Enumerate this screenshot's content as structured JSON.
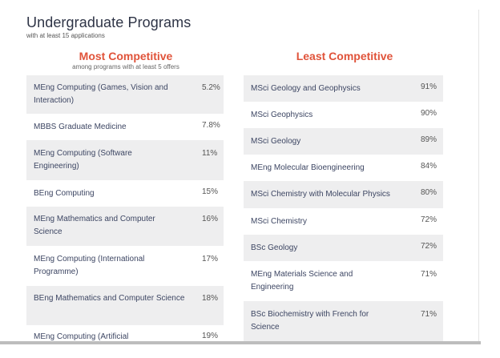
{
  "title": "Undergraduate Programs",
  "subtitle": "with at least 15 applications",
  "most": {
    "heading": "Most Competitive",
    "note": "among programs with at least 5 offers",
    "rows": [
      {
        "name": "MEng Computing (Games, Vision and Interaction)",
        "pct": "5.2%"
      },
      {
        "name": "MBBS Graduate Medicine",
        "pct": "7.8%"
      },
      {
        "name": "MEng Computing (Software Engineering)",
        "pct": "11%"
      },
      {
        "name": "BEng Computing",
        "pct": "15%"
      },
      {
        "name": "MEng Mathematics and Computer Science",
        "pct": "16%"
      },
      {
        "name": "MEng Computing (International Programme)",
        "pct": "17%"
      },
      {
        "name": "BEng Mathematics and Computer Science",
        "pct": "18%"
      },
      {
        "name": "MEng Computing (Artificial",
        "pct": "19%"
      }
    ]
  },
  "least": {
    "heading": "Least Competitive",
    "rows": [
      {
        "name": "MSci Geology and Geophysics",
        "pct": "91%"
      },
      {
        "name": "MSci Geophysics",
        "pct": "90%"
      },
      {
        "name": "MSci Geology",
        "pct": "89%"
      },
      {
        "name": "MEng Molecular Bioengineering",
        "pct": "84%"
      },
      {
        "name": "MSci Chemistry with Molecular Physics",
        "pct": "80%"
      },
      {
        "name": "MSci Chemistry",
        "pct": "72%"
      },
      {
        "name": "BSc Geology",
        "pct": "72%"
      },
      {
        "name": "MEng Materials Science and Engineering",
        "pct": "71%"
      },
      {
        "name": "BSc Biochemistry with French for Science",
        "pct": "71%"
      }
    ]
  }
}
